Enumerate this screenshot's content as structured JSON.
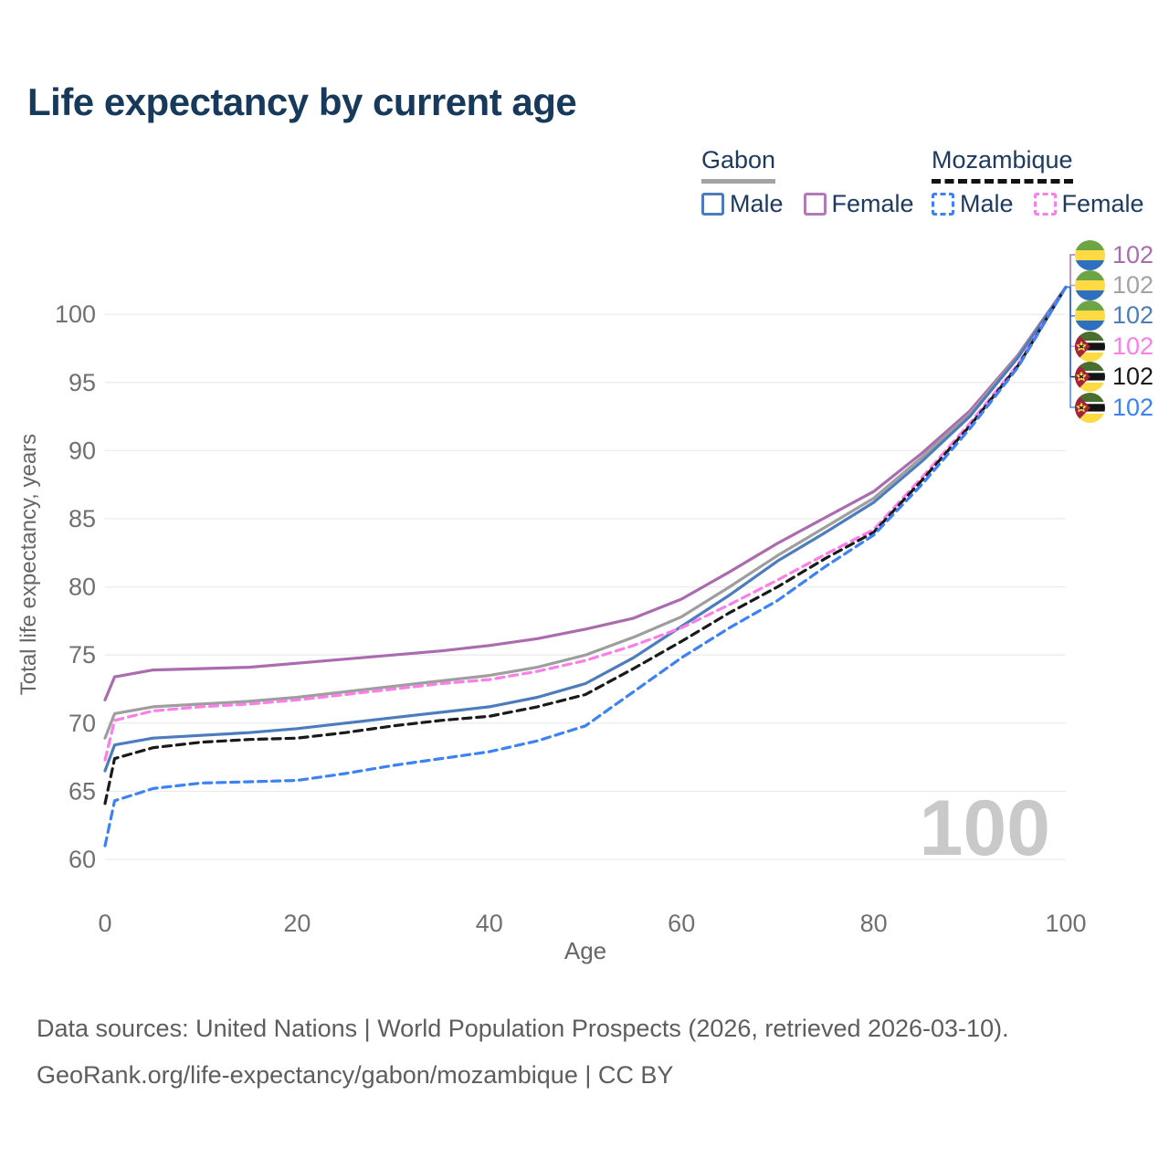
{
  "title": "Life expectancy by current age",
  "legend": {
    "groups": [
      {
        "name": "Gabon",
        "line_style": "solid",
        "line_color": "#a3a3a3",
        "items": [
          {
            "label": "Male",
            "swatch_color": "#4d7cbe",
            "swatch_style": "solid"
          },
          {
            "label": "Female",
            "swatch_color": "#b47ab8",
            "swatch_style": "solid"
          }
        ]
      },
      {
        "name": "Mozambique",
        "line_style": "dashed",
        "line_color": "#111111",
        "items": [
          {
            "label": "Male",
            "swatch_color": "#3c82f6",
            "swatch_style": "dashed"
          },
          {
            "label": "Female",
            "swatch_color": "#fc7ee8",
            "swatch_style": "dashed"
          }
        ]
      }
    ]
  },
  "chart_data": {
    "type": "line",
    "title": "Life expectancy by current age",
    "xlabel": "Age",
    "ylabel": "Total life expectancy, years",
    "xlim": [
      0,
      100
    ],
    "ylim": [
      60,
      102
    ],
    "x_ticks": [
      0,
      20,
      40,
      60,
      80,
      100
    ],
    "y_ticks": [
      60,
      65,
      70,
      75,
      80,
      85,
      90,
      95,
      100
    ],
    "grid": "horizontal-only",
    "legend_position": "top-right",
    "ages": [
      0,
      1,
      5,
      10,
      15,
      20,
      25,
      30,
      35,
      40,
      45,
      50,
      55,
      60,
      65,
      70,
      75,
      80,
      85,
      90,
      95,
      100
    ],
    "series": [
      {
        "name": "Gabon Female",
        "country": "Gabon",
        "sex": "Female",
        "color": "#aa6cae",
        "dash": "solid",
        "flag": "gabon",
        "end_label": "102",
        "end_label_color": "#aa6cae",
        "values": [
          71.7,
          73.4,
          73.9,
          74.0,
          74.1,
          74.4,
          74.7,
          75.0,
          75.3,
          75.7,
          76.2,
          76.9,
          77.7,
          79.1,
          81.1,
          83.2,
          85.1,
          87.0,
          89.8,
          92.9,
          97.0,
          102
        ]
      },
      {
        "name": "Gabon Both sexes",
        "country": "Gabon",
        "sex": "Both",
        "color": "#9e9e9e",
        "dash": "solid",
        "flag": "gabon",
        "end_label": "102",
        "end_label_color": "#a3a3a3",
        "values": [
          68.9,
          70.7,
          71.2,
          71.4,
          71.6,
          71.9,
          72.3,
          72.7,
          73.1,
          73.5,
          74.1,
          75.0,
          76.3,
          77.8,
          80.0,
          82.3,
          84.4,
          86.5,
          89.5,
          92.7,
          96.9,
          102
        ]
      },
      {
        "name": "Gabon Male",
        "country": "Gabon",
        "sex": "Male",
        "color": "#4d7cbe",
        "dash": "solid",
        "flag": "gabon",
        "end_label": "102",
        "end_label_color": "#4d7cbe",
        "values": [
          66.5,
          68.4,
          68.9,
          69.1,
          69.3,
          69.6,
          70.0,
          70.4,
          70.8,
          71.2,
          71.9,
          72.9,
          74.8,
          77.1,
          79.4,
          81.9,
          84.0,
          86.2,
          89.2,
          92.5,
          96.8,
          102
        ]
      },
      {
        "name": "Mozambique Female",
        "country": "Mozambique",
        "sex": "Female",
        "color": "#fc7ee8",
        "dash": "dashed",
        "flag": "mozambique",
        "end_label": "102",
        "end_label_color": "#fc7ee8",
        "values": [
          67.3,
          70.2,
          70.9,
          71.2,
          71.4,
          71.7,
          72.1,
          72.5,
          72.9,
          73.2,
          73.8,
          74.6,
          75.7,
          77.0,
          78.7,
          80.5,
          82.4,
          84.2,
          88.0,
          92.0,
          96.3,
          102
        ]
      },
      {
        "name": "Mozambique Both sexes",
        "country": "Mozambique",
        "sex": "Both",
        "color": "#1a1a1a",
        "dash": "dashed",
        "flag": "mozambique",
        "end_label": "102",
        "end_label_color": "#1a1a1a",
        "values": [
          64.1,
          67.4,
          68.2,
          68.6,
          68.8,
          68.9,
          69.3,
          69.8,
          70.2,
          70.5,
          71.2,
          72.1,
          74.0,
          76.0,
          78.1,
          80.0,
          82.1,
          84.0,
          87.8,
          91.8,
          96.2,
          102
        ]
      },
      {
        "name": "Mozambique Male",
        "country": "Mozambique",
        "sex": "Male",
        "color": "#3c82f6",
        "dash": "dashed",
        "flag": "mozambique",
        "end_label": "102",
        "end_label_color": "#3c82f6",
        "values": [
          61.0,
          64.3,
          65.2,
          65.6,
          65.7,
          65.8,
          66.3,
          66.9,
          67.4,
          67.9,
          68.7,
          69.8,
          72.3,
          74.8,
          77.0,
          79.0,
          81.5,
          83.8,
          87.5,
          91.6,
          96.1,
          102
        ]
      }
    ]
  },
  "watermark": "100",
  "footer": {
    "line1": "Data sources: United Nations | World Population Prospects (2026, retrieved 2026-03-10).",
    "line2": "GeoRank.org/life-expectancy/gabon/mozambique | CC BY"
  }
}
